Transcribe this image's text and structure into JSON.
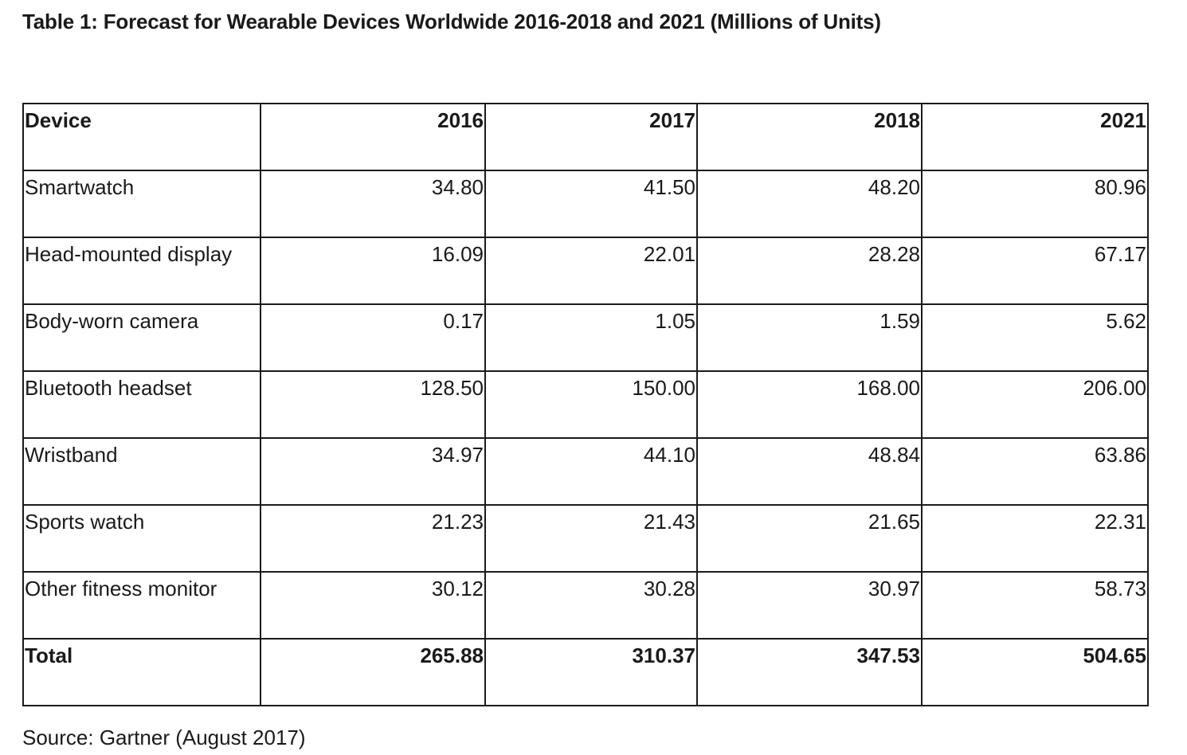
{
  "title": "Table 1: Forecast for Wearable Devices Worldwide 2016-2018 and 2021 (Millions of Units)",
  "table": {
    "headers": [
      "Device",
      "2016",
      "2017",
      "2018",
      "2021"
    ],
    "rows": [
      {
        "device": "Smartwatch",
        "values": [
          "34.80",
          "41.50",
          "48.20",
          "80.96"
        ]
      },
      {
        "device": "Head-mounted display",
        "values": [
          "16.09",
          "22.01",
          "28.28",
          "67.17"
        ]
      },
      {
        "device": "Body-worn camera",
        "values": [
          "0.17",
          "1.05",
          "1.59",
          "5.62"
        ]
      },
      {
        "device": "Bluetooth headset",
        "values": [
          "128.50",
          "150.00",
          "168.00",
          "206.00"
        ]
      },
      {
        "device": "Wristband",
        "values": [
          "34.97",
          "44.10",
          "48.84",
          "63.86"
        ]
      },
      {
        "device": "Sports watch",
        "values": [
          "21.23",
          "21.43",
          "21.65",
          "22.31"
        ]
      },
      {
        "device": "Other fitness monitor",
        "values": [
          "30.12",
          "30.28",
          "30.97",
          "58.73"
        ]
      }
    ],
    "total": {
      "device": "Total",
      "values": [
        "265.88",
        "310.37",
        "347.53",
        "504.65"
      ]
    }
  },
  "source": "Source: Gartner (August 2017)"
}
